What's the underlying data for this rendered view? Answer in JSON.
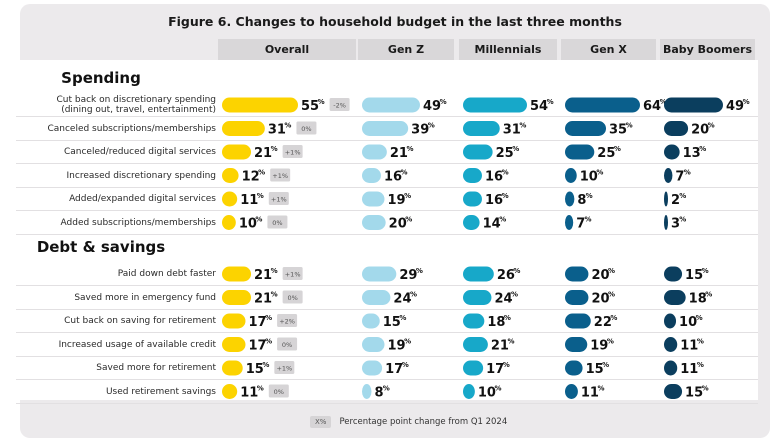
{
  "figure_title": "Figure 6. Changes to household budget in the last three months",
  "legend": {
    "chip": "X%",
    "text": "Percentage point change from Q1 2024"
  },
  "colors": {
    "Overall": "#fcd300",
    "Gen Z": "#a3d9eb",
    "Millennials": "#17a8c9",
    "Gen X": "#0a5f8c",
    "Baby Boomers": "#0b3e5e",
    "change_chip": "#d6d4d6"
  },
  "chart_data": {
    "type": "bar",
    "title": "Figure 6. Changes to household budget in the last three months",
    "columns": [
      "Overall",
      "Gen Z",
      "Millennials",
      "Gen X",
      "Baby Boomers"
    ],
    "sections": [
      {
        "name": "Spending",
        "rows": [
          {
            "label": [
              "Cut back on discretionary spending",
              "(dining out, travel, entertainment)"
            ],
            "values": [
              55,
              49,
              54,
              64,
              49
            ],
            "change": "-2%"
          },
          {
            "label": [
              "Canceled subscriptions/memberships"
            ],
            "values": [
              31,
              39,
              31,
              35,
              20
            ],
            "change": "0%"
          },
          {
            "label": [
              "Canceled/reduced digital services"
            ],
            "values": [
              21,
              21,
              25,
              25,
              13
            ],
            "change": "+1%"
          },
          {
            "label": [
              "Increased discretionary spending"
            ],
            "values": [
              12,
              16,
              16,
              10,
              7
            ],
            "change": "+1%"
          },
          {
            "label": [
              "Added/expanded digital services"
            ],
            "values": [
              11,
              19,
              16,
              8,
              2
            ],
            "change": "+1%"
          },
          {
            "label": [
              "Added subscriptions/memberships"
            ],
            "values": [
              10,
              20,
              14,
              7,
              3
            ],
            "change": "0%"
          }
        ]
      },
      {
        "name": "Debt & savings",
        "rows": [
          {
            "label": [
              "Paid down debt faster"
            ],
            "values": [
              21,
              29,
              26,
              20,
              15
            ],
            "change": "+1%"
          },
          {
            "label": [
              "Saved more in emergency fund"
            ],
            "values": [
              21,
              24,
              24,
              20,
              18
            ],
            "change": "0%"
          },
          {
            "label": [
              "Cut back on saving for retirement"
            ],
            "values": [
              17,
              15,
              18,
              22,
              10
            ],
            "change": "+2%"
          },
          {
            "label": [
              "Increased usage of available credit"
            ],
            "values": [
              17,
              19,
              21,
              19,
              11
            ],
            "change": "0%"
          },
          {
            "label": [
              "Saved more for retirement"
            ],
            "values": [
              15,
              17,
              17,
              15,
              11
            ],
            "change": "+1%"
          },
          {
            "label": [
              "Used retirement savings"
            ],
            "values": [
              11,
              8,
              10,
              11,
              15
            ],
            "change": "0%"
          }
        ]
      }
    ]
  }
}
